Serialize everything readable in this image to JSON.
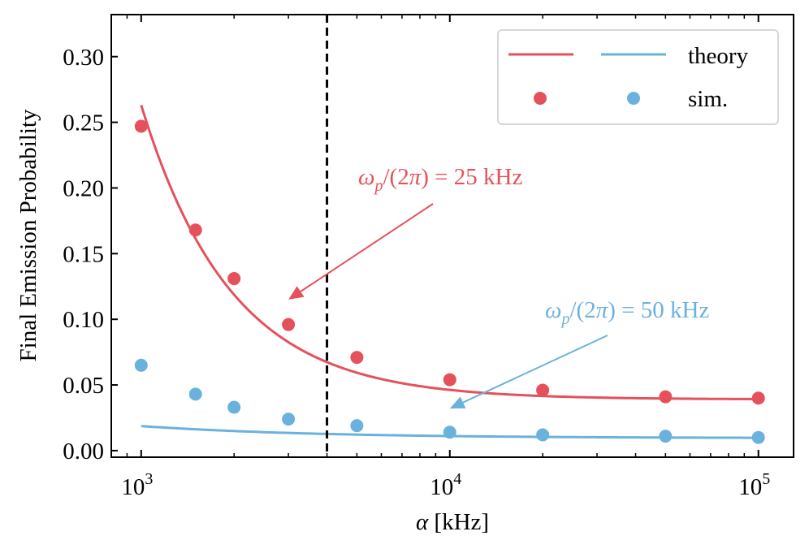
{
  "chart_data": {
    "type": "scatter",
    "title": "",
    "xlabel_var": "α",
    "xlabel_unit": " [kHz]",
    "ylabel": "Final Emission Probability",
    "xscale": "log",
    "xlim": [
      800,
      130000
    ],
    "ylim": [
      -0.005,
      0.332
    ],
    "x_ticks": [
      1000,
      10000,
      100000
    ],
    "x_tick_base": "10",
    "x_tick_exponents": [
      "3",
      "4",
      "5"
    ],
    "y_ticks": [
      0.0,
      0.05,
      0.1,
      0.15,
      0.2,
      0.25,
      0.3
    ],
    "y_tick_labels": [
      "0.00",
      "0.05",
      "0.10",
      "0.15",
      "0.20",
      "0.25",
      "0.30"
    ],
    "vline_x": 4000,
    "vline_style": "dashed",
    "series": [
      {
        "name": "25 kHz",
        "color": "#e5515a",
        "theory": {
          "type": "line",
          "x_range": [
            1000,
            100000
          ],
          "model": "y = a + b / x^c",
          "params": {
            "a": 0.039,
            "b": 6660,
            "c": 1.491
          }
        },
        "sim": {
          "type": "scatter",
          "x": [
            1000,
            1500,
            2000,
            3000,
            5000,
            10000,
            20000,
            50000,
            100000
          ],
          "y": [
            0.247,
            0.168,
            0.131,
            0.096,
            0.071,
            0.054,
            0.046,
            0.041,
            0.04
          ]
        }
      },
      {
        "name": "50 kHz",
        "color": "#6ab2dd",
        "theory": {
          "type": "line",
          "x_range": [
            1000,
            100000
          ],
          "model": "y = a + b / x^c",
          "params": {
            "a": 0.0095,
            "b": 1.8,
            "c": 0.764
          }
        },
        "sim": {
          "type": "scatter",
          "x": [
            1000,
            1500,
            2000,
            3000,
            5000,
            10000,
            20000,
            50000,
            100000
          ],
          "y": [
            0.065,
            0.043,
            0.033,
            0.024,
            0.019,
            0.014,
            0.012,
            0.011,
            0.01
          ]
        }
      }
    ],
    "legend": {
      "placement": "top-right",
      "labels": [
        "theory",
        "sim."
      ]
    },
    "annotations": [
      {
        "omega": "ω",
        "sub": "p",
        "mid": "/(2",
        "pi": "π",
        "close": ")",
        "eq": " = ",
        "value": "25 kHz",
        "color": "#e5515a",
        "arrow_target": {
          "x": 3000,
          "y": 0.115
        }
      },
      {
        "omega": "ω",
        "sub": "p",
        "mid": "/(2",
        "pi": "π",
        "close": ")",
        "eq": " = ",
        "value": "50 kHz",
        "color": "#6ab2dd",
        "arrow_target": {
          "x": 10000,
          "y": 0.032
        }
      }
    ]
  }
}
